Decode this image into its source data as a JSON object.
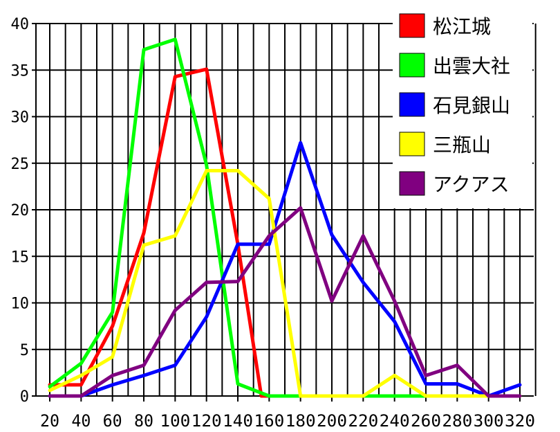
{
  "chart_data": {
    "type": "line",
    "title": "",
    "xlabel": "",
    "ylabel": "",
    "x": [
      20,
      40,
      60,
      80,
      100,
      120,
      140,
      160,
      180,
      200,
      220,
      240,
      260,
      280,
      300,
      320
    ],
    "x_ticks": [
      "20",
      "40",
      "60",
      "80",
      "100",
      "120",
      "140",
      "160",
      "180",
      "200",
      "220",
      "240",
      "260",
      "280",
      "300",
      "320"
    ],
    "ylim": [
      0,
      40
    ],
    "y_ticks": [
      0,
      5,
      10,
      15,
      20,
      25,
      30,
      35,
      40
    ],
    "y_tick_labels": [
      "0",
      "5",
      "10",
      "15",
      "20",
      "25",
      "30",
      "35",
      "40"
    ],
    "grid": true,
    "legend_position": "top-right",
    "series": [
      {
        "name": "松江城",
        "color": "#ff0000",
        "points": [
          [
            20,
            1.2
          ],
          [
            40,
            1.2
          ],
          [
            60,
            7.5
          ],
          [
            80,
            17.5
          ],
          [
            100,
            34.3
          ],
          [
            120,
            35.1
          ],
          [
            140,
            16.3
          ],
          [
            155,
            0
          ],
          [
            320,
            0
          ]
        ]
      },
      {
        "name": "出雲大社",
        "color": "#00ff00",
        "points": [
          [
            20,
            1.0
          ],
          [
            40,
            3.5
          ],
          [
            60,
            9.0
          ],
          [
            80,
            37.2
          ],
          [
            100,
            38.3
          ],
          [
            120,
            24.8
          ],
          [
            140,
            1.3
          ],
          [
            160,
            0
          ],
          [
            320,
            0
          ]
        ]
      },
      {
        "name": "石見銀山",
        "color": "#0000ff",
        "points": [
          [
            20,
            0
          ],
          [
            40,
            0
          ],
          [
            60,
            1.2
          ],
          [
            80,
            2.2
          ],
          [
            100,
            3.3
          ],
          [
            120,
            8.5
          ],
          [
            140,
            16.3
          ],
          [
            160,
            16.3
          ],
          [
            180,
            27.2
          ],
          [
            200,
            17.3
          ],
          [
            220,
            12.2
          ],
          [
            240,
            8.0
          ],
          [
            260,
            1.3
          ],
          [
            280,
            1.3
          ],
          [
            300,
            0
          ],
          [
            320,
            1.2
          ]
        ]
      },
      {
        "name": "三瓶山",
        "color": "#ffff00",
        "points": [
          [
            20,
            0.6
          ],
          [
            40,
            2.2
          ],
          [
            60,
            4.2
          ],
          [
            80,
            16.2
          ],
          [
            100,
            17.2
          ],
          [
            120,
            24.2
          ],
          [
            140,
            24.2
          ],
          [
            160,
            21.2
          ],
          [
            180,
            0
          ],
          [
            200,
            0
          ],
          [
            220,
            0
          ],
          [
            240,
            2.2
          ],
          [
            260,
            0
          ],
          [
            280,
            0
          ],
          [
            300,
            0
          ],
          [
            320,
            0
          ]
        ]
      },
      {
        "name": "アクアス",
        "color": "#800080",
        "points": [
          [
            20,
            0
          ],
          [
            40,
            0
          ],
          [
            60,
            2.2
          ],
          [
            80,
            3.3
          ],
          [
            100,
            9.2
          ],
          [
            120,
            12.2
          ],
          [
            140,
            12.3
          ],
          [
            160,
            17.2
          ],
          [
            180,
            20.2
          ],
          [
            200,
            10.2
          ],
          [
            220,
            17.2
          ],
          [
            240,
            10.2
          ],
          [
            260,
            2.2
          ],
          [
            280,
            3.3
          ],
          [
            300,
            0
          ],
          [
            320,
            0
          ]
        ]
      }
    ]
  }
}
